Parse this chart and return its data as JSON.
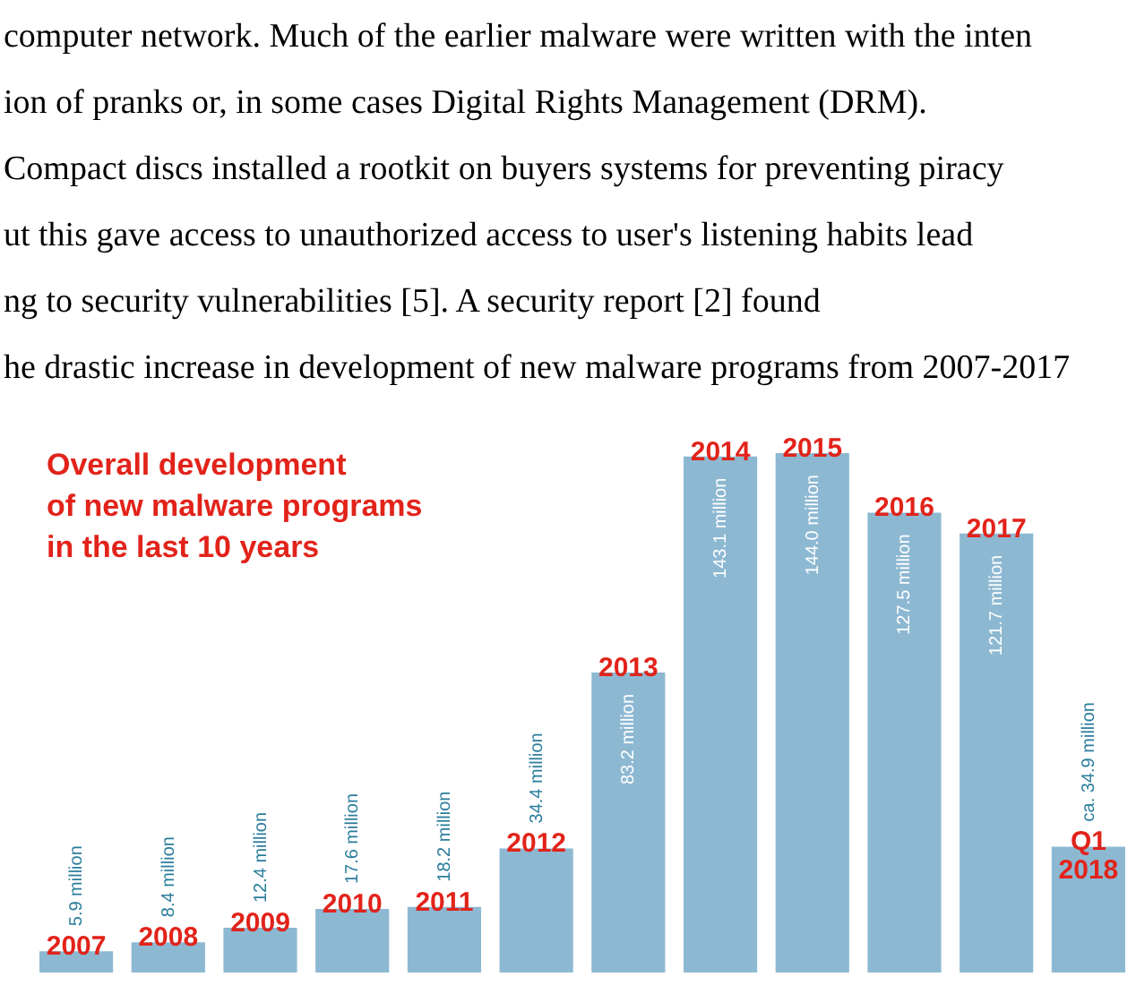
{
  "chart_data": {
    "type": "bar",
    "title": "Overall development\nof new malware programs\nin the last 10 years",
    "categories": [
      "2007",
      "2008",
      "2009",
      "2010",
      "2011",
      "2012",
      "2013",
      "2014",
      "2015",
      "2016",
      "2017",
      "Q1\n2018"
    ],
    "values": [
      5.9,
      8.4,
      12.4,
      17.6,
      18.2,
      34.4,
      83.2,
      143.1,
      144.0,
      127.5,
      121.7,
      34.9
    ],
    "value_labels": [
      "5.9 million",
      "8.4 million",
      "12.4 million",
      "17.6 million",
      "18.2 million",
      "34.4 million",
      "83.2 million",
      "143.1 million",
      "144.0 million",
      "127.5 million",
      "121.7 million",
      "ca. 34.9 million"
    ],
    "color": "#8db8d2",
    "annotations": [
      "computer network.  Much of the earlier malware were written with the inten",
      "ion of pranks or, in some cases Digital Rights Management (DRM).",
      "Compact discs installed a rootkit on buyers systems for preventing piracy",
      "ut this gave access to unauthorized access to user's listening habits lead",
      "ng to security vulnerabilities [5].  A security report [2] found",
      "he drastic increase in development of new malware programs from 2007-2017"
    ]
  }
}
